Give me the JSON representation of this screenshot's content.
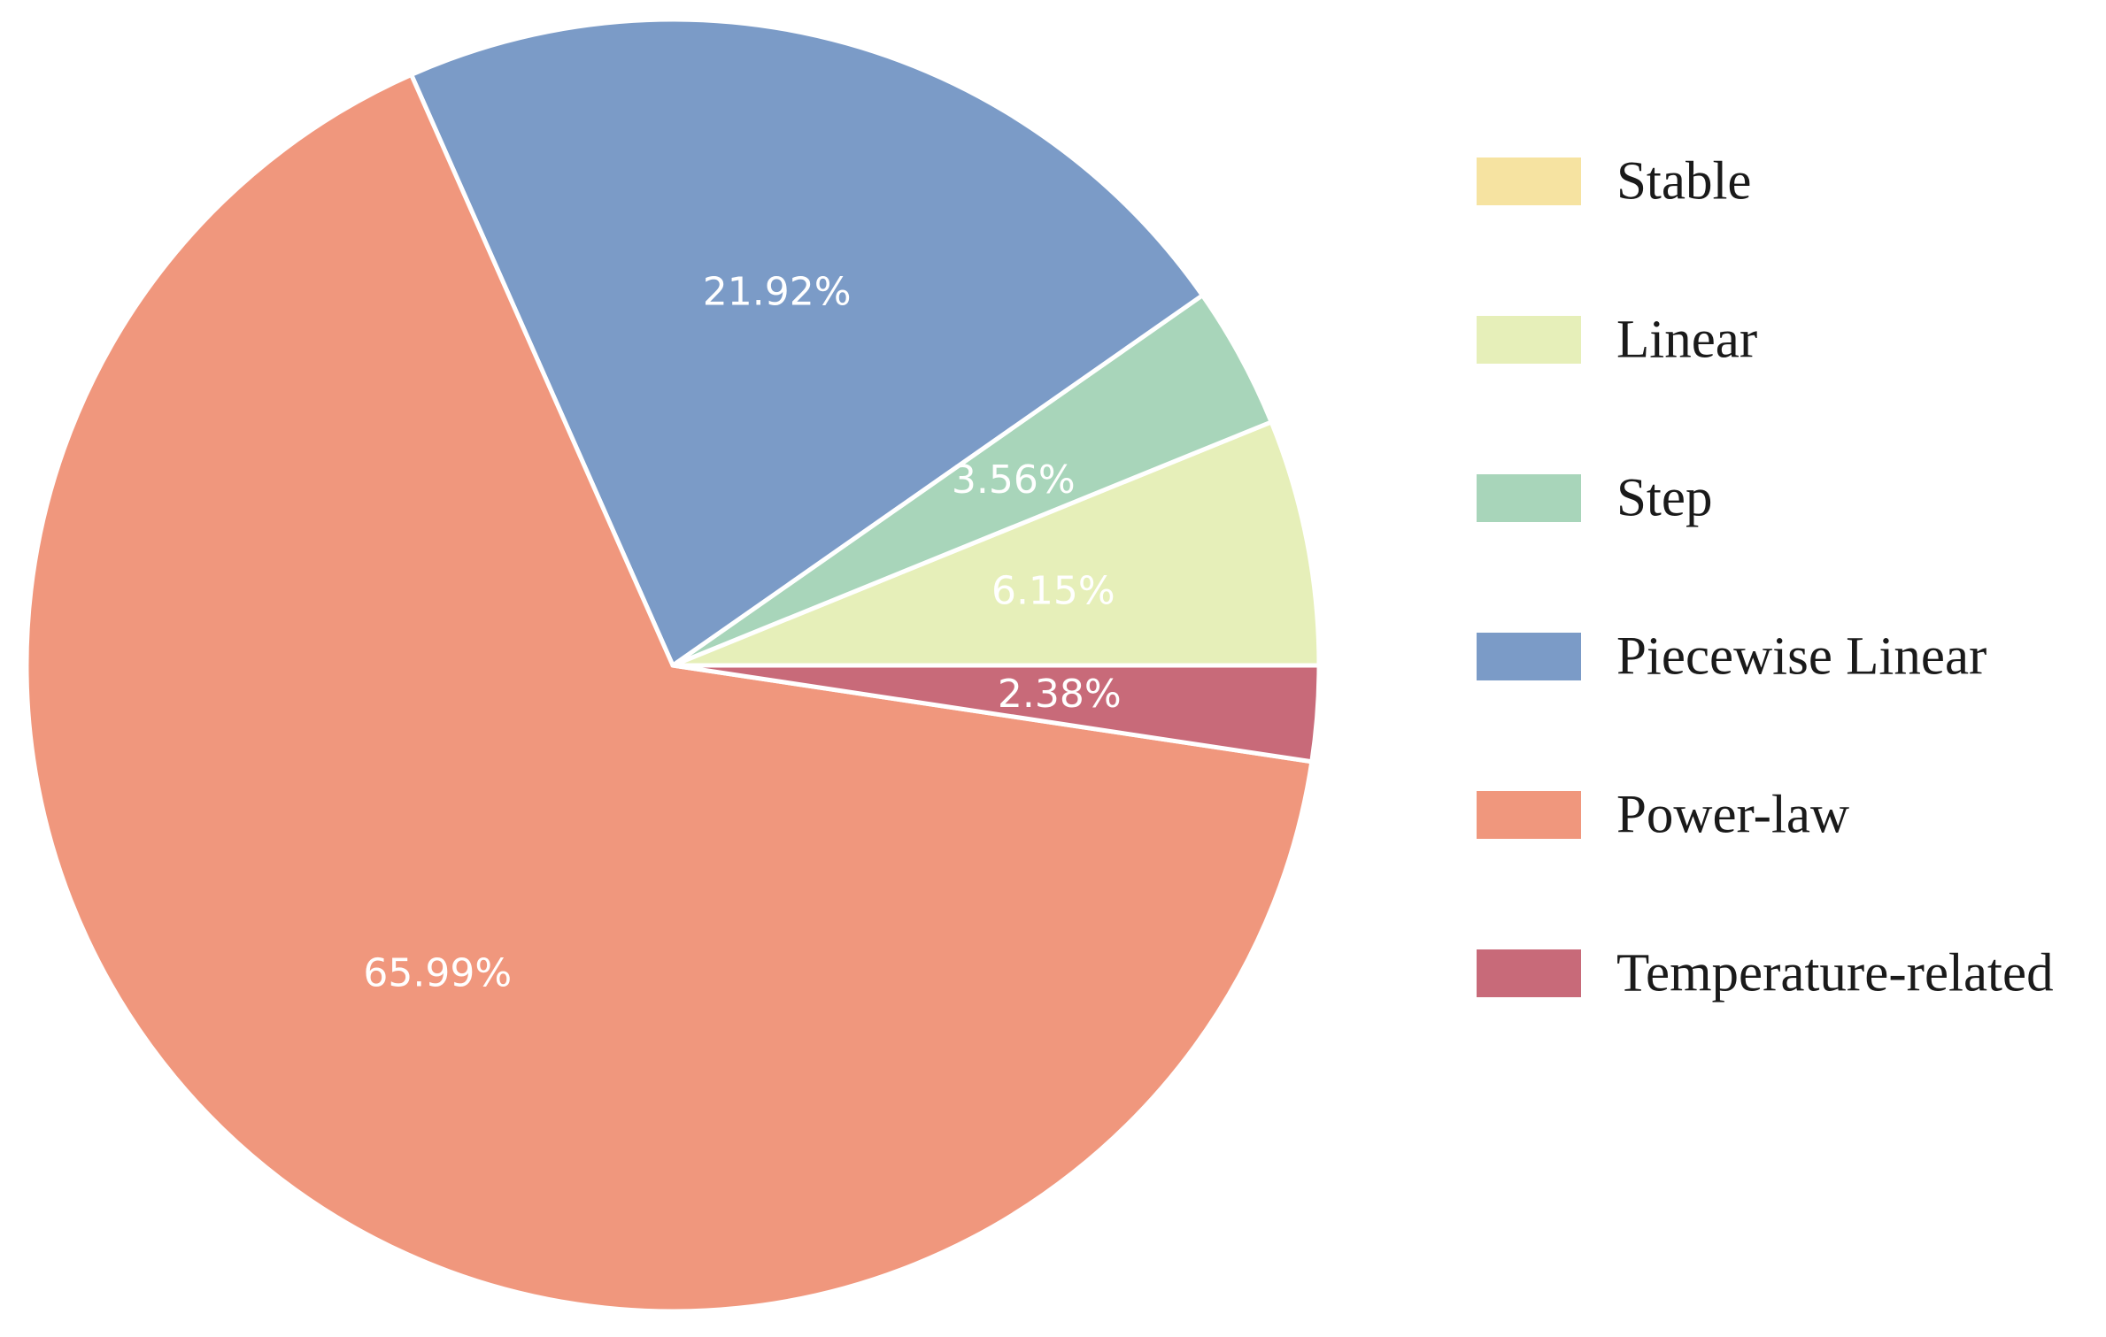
{
  "chart_data": {
    "type": "pie",
    "start_angle_deg": 0,
    "direction": "counterclockwise",
    "legend_placement": "right",
    "slices": [
      {
        "label": "Stable",
        "value": 0.0,
        "color": "#F6E3A1",
        "value_label": ""
      },
      {
        "label": "Linear",
        "value": 6.15,
        "color": "#E6EFB9",
        "value_label": "6.15%"
      },
      {
        "label": "Step",
        "value": 3.56,
        "color": "#A8D5BA",
        "value_label": "3.56%"
      },
      {
        "label": "Piecewise Linear",
        "value": 21.92,
        "color": "#7B9BC7",
        "value_label": "21.92%"
      },
      {
        "label": "Power-law",
        "value": 65.99,
        "color": "#F0977D",
        "value_label": "65.99%"
      },
      {
        "label": "Temperature-related",
        "value": 2.38,
        "color": "#C86A79",
        "value_label": "2.38%"
      }
    ]
  }
}
